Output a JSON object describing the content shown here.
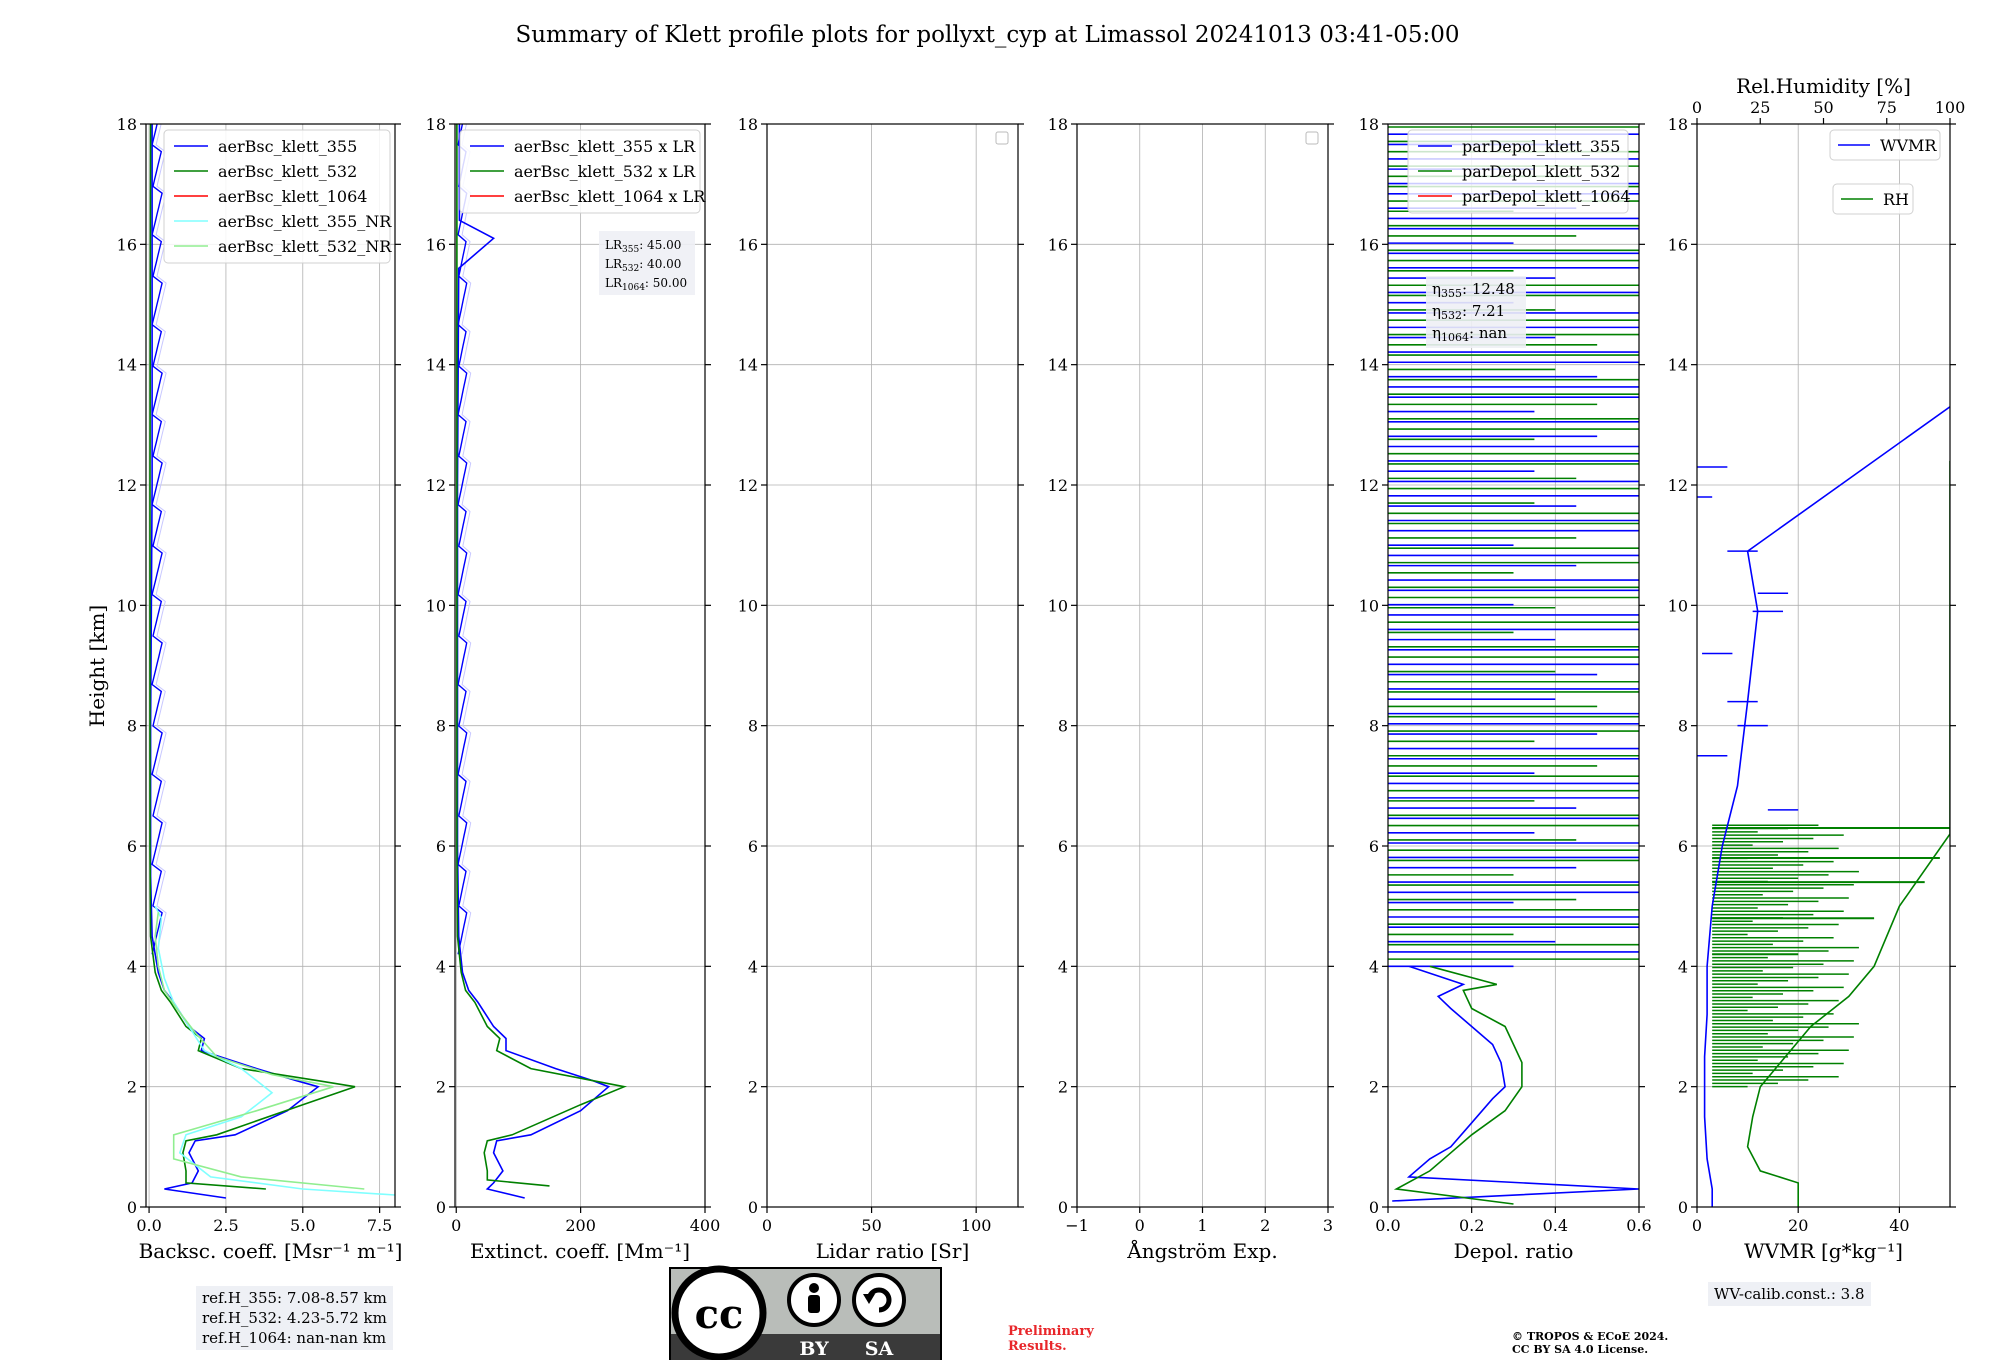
{
  "title": "Summary of Klett profile plots for pollyxt_cyp at Limassol 20241013 03:41-05:00",
  "ylabel": "Height [km]",
  "y_ticks": [
    "0",
    "2",
    "4",
    "6",
    "8",
    "10",
    "12",
    "14",
    "16",
    "18"
  ],
  "colors": {
    "blue": "#0000ff",
    "green": "#008000",
    "red": "#ff0000",
    "cyan": "#80ffff",
    "lightgreen": "#90ee90",
    "lightblue": "#c8c8ff"
  },
  "ref_heights": [
    "ref.H_355: 7.08-8.57 km",
    "ref.H_532: 4.23-5.72 km",
    "ref.H_1064: nan-nan km"
  ],
  "wv_calib": "WV-calib.const.: 3.8",
  "license": {
    "cc": "cc",
    "by": "BY",
    "sa": "SA"
  },
  "preliminary": [
    "Preliminary",
    "Results."
  ],
  "copyright": [
    "© TROPOS & ECoE 2024.",
    "CC BY SA 4.0 License."
  ],
  "lr_annotation": [
    {
      "base": "LR",
      "sub": "355",
      "value": ": 45.00"
    },
    {
      "base": "LR",
      "sub": "532",
      "value": ": 40.00"
    },
    {
      "base": "LR",
      "sub": "1064",
      "value": ": 50.00"
    }
  ],
  "eta_annotation": [
    {
      "base": "η",
      "sub": "355",
      "value": ": 12.48"
    },
    {
      "base": "η",
      "sub": "532",
      "value": ": 7.21"
    },
    {
      "base": "η",
      "sub": "1064",
      "value": ": nan"
    }
  ],
  "chart_data": [
    {
      "type": "line",
      "xlabel": "Backsc. coeff. [Msr⁻¹ m⁻¹]",
      "x_ticks": [
        "0.0",
        "2.5",
        "5.0",
        "7.5"
      ],
      "xlim": [
        -0.1,
        8.0
      ],
      "ylim": [
        0,
        18
      ],
      "grid": true,
      "legend": "top-right",
      "series": [
        {
          "name": "aerBsc_klett_355",
          "color": "#0000ff",
          "points": [
            [
              2.5,
              0.15
            ],
            [
              0.5,
              0.3
            ],
            [
              1.4,
              0.4
            ],
            [
              1.6,
              0.6
            ],
            [
              1.3,
              0.9
            ],
            [
              1.5,
              1.1
            ],
            [
              2.8,
              1.2
            ],
            [
              4.5,
              1.6
            ],
            [
              5.5,
              2.0
            ],
            [
              4.8,
              2.1
            ],
            [
              3.5,
              2.3
            ],
            [
              1.7,
              2.6
            ],
            [
              1.8,
              2.8
            ],
            [
              1.3,
              3.0
            ],
            [
              0.8,
              3.4
            ],
            [
              0.5,
              3.6
            ],
            [
              0.3,
              3.9
            ],
            [
              0.1,
              4.5
            ],
            [
              0.05,
              5.5
            ],
            [
              0.05,
              8
            ],
            [
              0.1,
              12
            ],
            [
              0.1,
              16
            ],
            [
              0.1,
              18
            ]
          ]
        },
        {
          "name": "aerBsc_klett_532",
          "color": "#008000",
          "points": [
            [
              3.8,
              0.3
            ],
            [
              1.2,
              0.4
            ],
            [
              1.2,
              0.6
            ],
            [
              1.1,
              0.9
            ],
            [
              1.2,
              1.1
            ],
            [
              2.2,
              1.2
            ],
            [
              5.0,
              1.7
            ],
            [
              6.7,
              2.0
            ],
            [
              5.5,
              2.1
            ],
            [
              3.0,
              2.3
            ],
            [
              1.6,
              2.6
            ],
            [
              1.7,
              2.8
            ],
            [
              1.2,
              3.0
            ],
            [
              0.7,
              3.4
            ],
            [
              0.4,
              3.6
            ],
            [
              0.2,
              3.9
            ],
            [
              0.05,
              4.5
            ],
            [
              0.03,
              6
            ],
            [
              0.03,
              12
            ],
            [
              0.05,
              18
            ]
          ]
        },
        {
          "name": "aerBsc_klett_1064",
          "color": "#ff0000",
          "points": []
        },
        {
          "name": "aerBsc_klett_355_NR",
          "color": "#80ffff",
          "points": [
            [
              8.0,
              0.2
            ],
            [
              5.0,
              0.3
            ],
            [
              2.0,
              0.5
            ],
            [
              1.0,
              0.9
            ],
            [
              1.2,
              1.2
            ],
            [
              3.0,
              1.5
            ],
            [
              4.0,
              1.9
            ],
            [
              3.0,
              2.3
            ],
            [
              1.8,
              2.6
            ],
            [
              1.3,
              3.0
            ],
            [
              0.8,
              3.4
            ],
            [
              0.5,
              3.8
            ],
            [
              0.3,
              4.3
            ],
            [
              0.4,
              4.8
            ],
            [
              0.2,
              5.0
            ]
          ]
        },
        {
          "name": "aerBsc_klett_532_NR",
          "color": "#90ee90",
          "points": [
            [
              7.0,
              0.3
            ],
            [
              3.0,
              0.5
            ],
            [
              0.8,
              0.8
            ],
            [
              0.8,
              1.2
            ],
            [
              3.5,
              1.6
            ],
            [
              6.0,
              2.0
            ],
            [
              4.0,
              2.2
            ],
            [
              2.2,
              2.5
            ],
            [
              1.5,
              2.9
            ],
            [
              0.9,
              3.3
            ],
            [
              0.5,
              3.6
            ],
            [
              0.3,
              4.0
            ],
            [
              0.2,
              4.5
            ],
            [
              0.3,
              4.9
            ]
          ]
        }
      ]
    },
    {
      "type": "line",
      "xlabel": "Extinct. coeff. [Mm⁻¹]",
      "x_ticks": [
        "0",
        "200",
        "400"
      ],
      "xlim": [
        -2,
        400
      ],
      "ylim": [
        0,
        18
      ],
      "grid": true,
      "legend": "top-right",
      "series": [
        {
          "name": "aerBsc_klett_355 x LR",
          "color": "#0000ff",
          "points": [
            [
              110,
              0.15
            ],
            [
              50,
              0.3
            ],
            [
              60,
              0.4
            ],
            [
              75,
              0.6
            ],
            [
              60,
              0.9
            ],
            [
              65,
              1.1
            ],
            [
              120,
              1.2
            ],
            [
              200,
              1.6
            ],
            [
              245,
              2.0
            ],
            [
              220,
              2.1
            ],
            [
              160,
              2.3
            ],
            [
              80,
              2.6
            ],
            [
              80,
              2.8
            ],
            [
              60,
              3.0
            ],
            [
              35,
              3.4
            ],
            [
              20,
              3.6
            ],
            [
              10,
              3.9
            ],
            [
              4,
              4.5
            ],
            [
              2,
              6
            ],
            [
              2,
              12
            ],
            [
              4,
              15.6
            ],
            [
              60,
              16.1
            ],
            [
              5,
              16.4
            ],
            [
              5,
              18
            ]
          ]
        },
        {
          "name": "aerBsc_klett_532 x LR",
          "color": "#008000",
          "points": [
            [
              150,
              0.35
            ],
            [
              50,
              0.45
            ],
            [
              50,
              0.6
            ],
            [
              45,
              0.9
            ],
            [
              50,
              1.1
            ],
            [
              90,
              1.2
            ],
            [
              200,
              1.7
            ],
            [
              270,
              2.0
            ],
            [
              220,
              2.1
            ],
            [
              120,
              2.3
            ],
            [
              65,
              2.6
            ],
            [
              70,
              2.8
            ],
            [
              50,
              3.0
            ],
            [
              30,
              3.4
            ],
            [
              15,
              3.6
            ],
            [
              8,
              3.9
            ],
            [
              2,
              4.5
            ],
            [
              1,
              6
            ],
            [
              1,
              18
            ]
          ]
        },
        {
          "name": "aerBsc_klett_1064 x LR",
          "color": "#ff0000",
          "points": []
        }
      ]
    },
    {
      "type": "line",
      "xlabel": "Lidar ratio [Sr]",
      "x_ticks": [
        "0",
        "50",
        "100"
      ],
      "xlim": [
        0,
        120
      ],
      "ylim": [
        0,
        18
      ],
      "grid": true,
      "series": []
    },
    {
      "type": "line",
      "xlabel": "Ångström Exp.",
      "x_ticks": [
        "−1",
        "0",
        "1",
        "2",
        "3"
      ],
      "xlim": [
        -1,
        3
      ],
      "ylim": [
        0,
        18
      ],
      "grid": true,
      "series": []
    },
    {
      "type": "line",
      "xlabel": "Depol. ratio",
      "x_ticks": [
        "0.0",
        "0.2",
        "0.4",
        "0.6"
      ],
      "xlim": [
        0,
        0.6
      ],
      "ylim": [
        0,
        18
      ],
      "grid": true,
      "legend": "top-right",
      "series": [
        {
          "name": "parDepol_klett_355",
          "color": "#0000ff",
          "points": [
            [
              0.01,
              0.1
            ],
            [
              0.6,
              0.3
            ],
            [
              0.05,
              0.5
            ],
            [
              0.1,
              0.8
            ],
            [
              0.15,
              1.0
            ],
            [
              0.2,
              1.4
            ],
            [
              0.25,
              1.8
            ],
            [
              0.28,
              2.0
            ],
            [
              0.27,
              2.4
            ],
            [
              0.25,
              2.7
            ],
            [
              0.2,
              3.0
            ],
            [
              0.15,
              3.3
            ],
            [
              0.12,
              3.5
            ],
            [
              0.18,
              3.7
            ],
            [
              0.05,
              4.0
            ]
          ]
        },
        {
          "name": "parDepol_klett_532",
          "color": "#008000",
          "points": [
            [
              0.3,
              0.05
            ],
            [
              0.02,
              0.3
            ],
            [
              0.1,
              0.6
            ],
            [
              0.15,
              0.9
            ],
            [
              0.2,
              1.2
            ],
            [
              0.28,
              1.6
            ],
            [
              0.32,
              2.0
            ],
            [
              0.32,
              2.4
            ],
            [
              0.3,
              2.7
            ],
            [
              0.28,
              3.0
            ],
            [
              0.2,
              3.3
            ],
            [
              0.18,
              3.6
            ],
            [
              0.26,
              3.7
            ],
            [
              0.1,
              4.0
            ]
          ]
        },
        {
          "name": "parDepol_klett_1064",
          "color": "#ff0000",
          "points": []
        }
      ]
    },
    {
      "type": "line",
      "xlabel": "WVMR [g*kg⁻¹]",
      "x_ticks": [
        "0",
        "20",
        "40"
      ],
      "xlim": [
        0,
        50
      ],
      "ylim": [
        0,
        18
      ],
      "top_axis": {
        "label": "Rel.Humidity [%]",
        "ticks": [
          "0",
          "25",
          "50",
          "75",
          "100"
        ],
        "xlim": [
          0,
          100
        ]
      },
      "grid": true,
      "legend": "top-right",
      "series": [
        {
          "name": "WVMR",
          "color": "#0000ff",
          "points": [
            [
              3,
              0.0
            ],
            [
              3,
              0.3
            ],
            [
              2,
              0.8
            ],
            [
              1.5,
              1.5
            ],
            [
              1.5,
              2.5
            ],
            [
              2,
              3.2
            ],
            [
              2,
              4.0
            ],
            [
              3,
              5.0
            ],
            [
              5,
              6.0
            ],
            [
              8,
              7.0
            ],
            [
              10,
              8.4
            ],
            [
              12,
              9.9
            ],
            [
              10,
              10.9
            ],
            [
              50,
              13.3
            ]
          ]
        },
        {
          "name": "RH",
          "color": "#008000",
          "points": [
            [
              40,
              0.0
            ],
            [
              40,
              0.4
            ],
            [
              25,
              0.6
            ],
            [
              20,
              1.0
            ],
            [
              22,
              1.5
            ],
            [
              25,
              2.0
            ],
            [
              35,
              2.5
            ],
            [
              45,
              3.0
            ],
            [
              60,
              3.5
            ],
            [
              70,
              4.0
            ],
            [
              80,
              5.0
            ],
            [
              100,
              6.2
            ],
            [
              100,
              8.9
            ],
            [
              100,
              12.4
            ]
          ]
        }
      ]
    }
  ]
}
